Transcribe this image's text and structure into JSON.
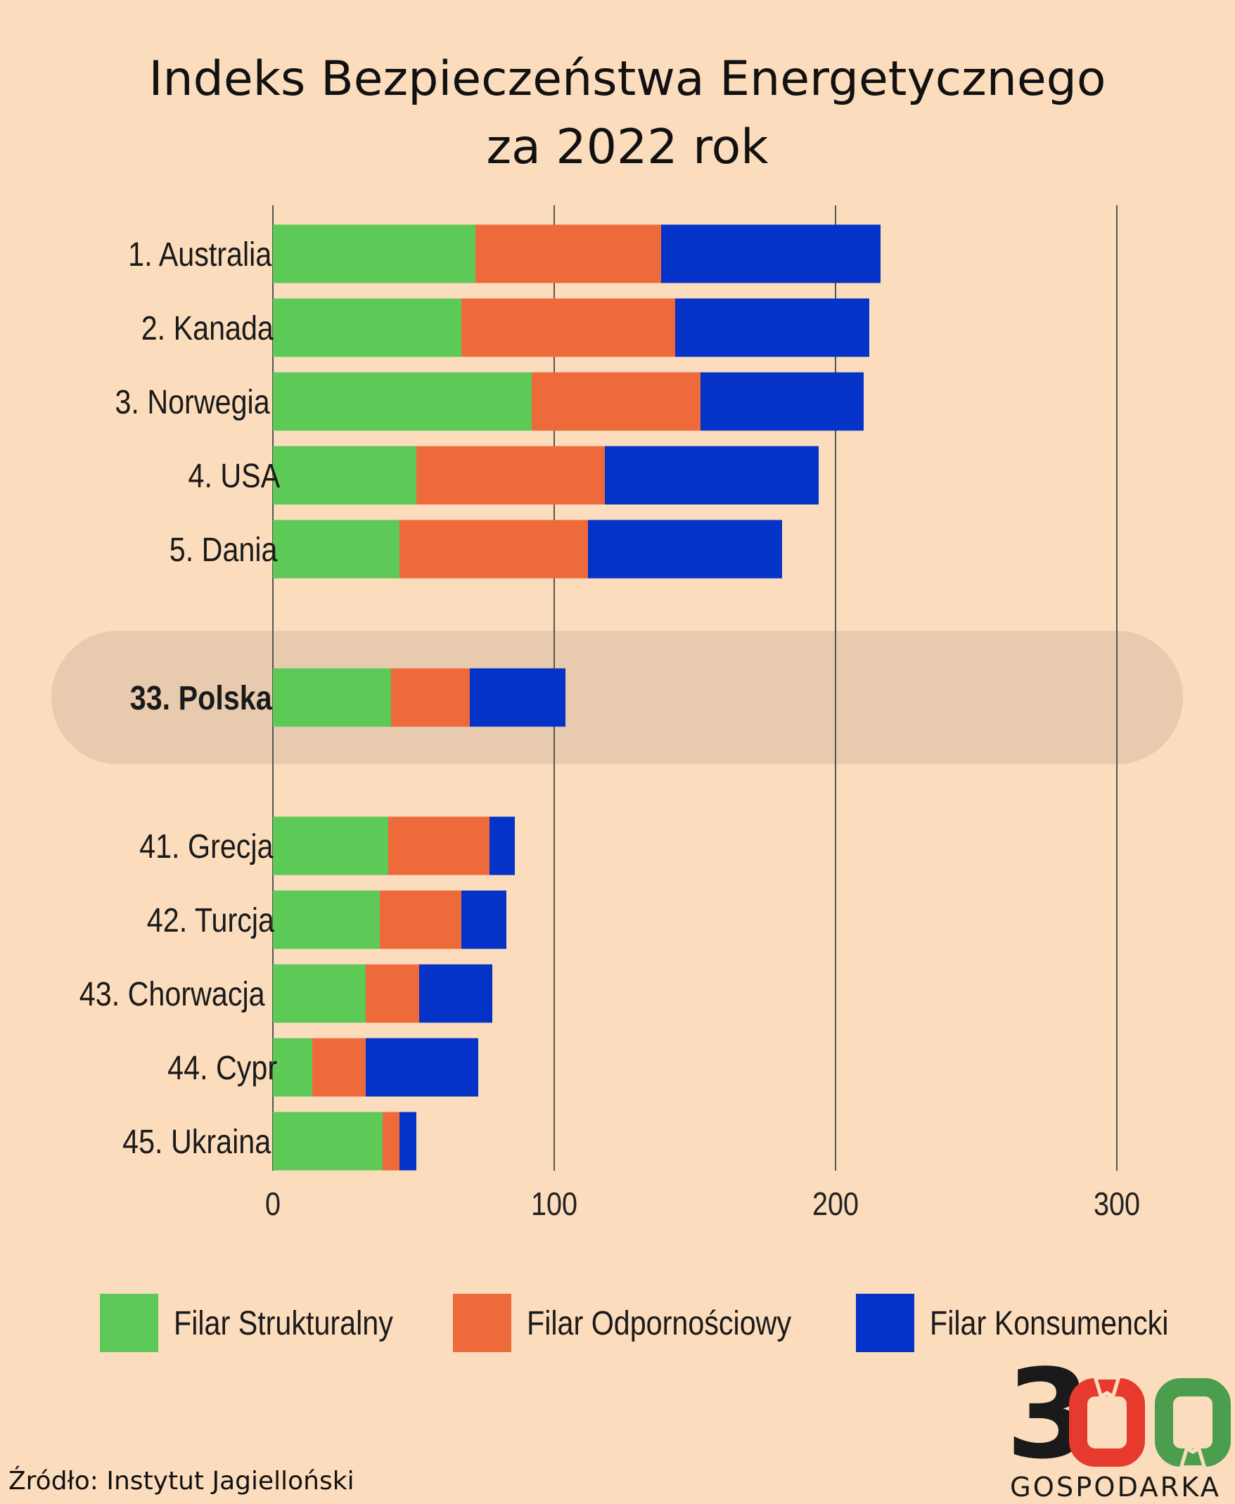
{
  "title_lines": [
    "Indeks Bezpieczeństwa Energetycznego",
    "za 2022 rok"
  ],
  "source": "Źródło: Instytut Jagielloński",
  "logo": {
    "digit": "3",
    "word": "GOSPODARKA"
  },
  "colors": {
    "background": "#fbdcbd",
    "highlight": "#e8cbaf",
    "structural": "#5dc957",
    "resilience": "#ef6a3a",
    "consumer": "#0533c8",
    "grid": "#555555"
  },
  "chart_data": {
    "type": "bar",
    "orientation": "horizontal",
    "stacked": true,
    "title": "Indeks Bezpieczeństwa Energetycznego za 2022 rok",
    "categories": [
      "1. Australia",
      "2. Kanada",
      "3. Norwegia",
      "4. USA",
      "5. Dania",
      "33. Polska",
      "41. Grecja",
      "42. Turcja",
      "43. Chorwacja",
      "44. Cypr",
      "45. Ukraina"
    ],
    "highlighted": "33. Polska",
    "series": [
      {
        "name": "Filar Strukturalny",
        "color": "#5dc957",
        "values": [
          72,
          67,
          92,
          51,
          45,
          42,
          41,
          38,
          33,
          14,
          39
        ]
      },
      {
        "name": "Filar Odpornościowy",
        "color": "#ef6a3a",
        "values": [
          66,
          76,
          60,
          67,
          67,
          28,
          36,
          29,
          19,
          19,
          6
        ]
      },
      {
        "name": "Filar Konsumencki",
        "color": "#0533c8",
        "values": [
          78,
          69,
          58,
          76,
          69,
          34,
          9,
          16,
          26,
          40,
          6
        ]
      }
    ],
    "xlim": [
      0,
      300
    ],
    "xticks": [
      "0",
      "100",
      "200",
      "300"
    ],
    "grid": true,
    "legend_position": "bottom"
  }
}
